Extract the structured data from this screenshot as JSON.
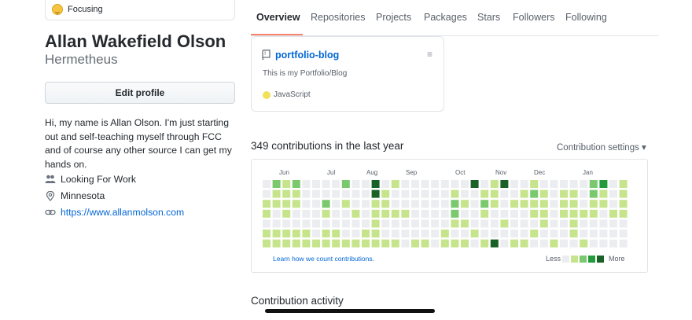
{
  "sidebar": {
    "status": "Focusing",
    "name": "Allan Wakefield Olson",
    "username": "Hermetheus",
    "edit_button": "Edit profile",
    "bio": "Hi, my name is Allan Olson. I'm just starting out and self-teaching myself through FCC and of course any other source I can get my hands on.",
    "company": "Looking For Work",
    "location": "Minnesota",
    "website": "https://www.allanmolson.com"
  },
  "tabs": [
    "Overview",
    "Repositories",
    "Projects",
    "Packages",
    "Stars",
    "Followers",
    "Following"
  ],
  "pinned": {
    "name": "portfolio-blog",
    "description": "This is my Portfolio/Blog",
    "language": "JavaScript",
    "language_color": "#f1e05a"
  },
  "contributions": {
    "title": "349 contributions in the last year",
    "settings": "Contribution settings ▾",
    "months": [
      "Jun",
      "Jul",
      "Aug",
      "Sep",
      "Oct",
      "Nov",
      "Dec",
      "Jan"
    ],
    "learn_link": "Learn how we count contributions.",
    "legend_less": "Less",
    "legend_more": "More",
    "colors": [
      "#ebedf0",
      "#c6e48b",
      "#7bc96f",
      "#239a3b",
      "#196127"
    ],
    "weeks": [
      [
        0,
        0,
        1,
        1,
        0,
        1,
        1
      ],
      [
        2,
        1,
        1,
        0,
        0,
        1,
        1
      ],
      [
        1,
        1,
        1,
        1,
        0,
        1,
        1
      ],
      [
        2,
        1,
        1,
        0,
        0,
        1,
        1
      ],
      [
        0,
        0,
        0,
        0,
        0,
        1,
        1
      ],
      [
        0,
        0,
        0,
        0,
        0,
        0,
        1
      ],
      [
        0,
        0,
        2,
        1,
        0,
        1,
        1
      ],
      [
        0,
        0,
        0,
        0,
        0,
        1,
        1
      ],
      [
        2,
        0,
        1,
        0,
        0,
        0,
        1
      ],
      [
        0,
        0,
        0,
        1,
        0,
        0,
        1
      ],
      [
        0,
        0,
        0,
        0,
        0,
        1,
        1
      ],
      [
        4,
        4,
        1,
        1,
        1,
        1,
        1
      ],
      [
        0,
        1,
        1,
        1,
        0,
        0,
        1
      ],
      [
        1,
        0,
        0,
        1,
        0,
        0,
        1
      ],
      [
        0,
        0,
        0,
        1,
        0,
        0,
        0
      ],
      [
        0,
        0,
        0,
        0,
        0,
        0,
        1
      ],
      [
        0,
        0,
        0,
        0,
        0,
        0,
        1
      ],
      [
        0,
        0,
        0,
        0,
        0,
        0,
        0
      ],
      [
        0,
        0,
        0,
        0,
        0,
        1,
        1
      ],
      [
        0,
        1,
        2,
        2,
        1,
        0,
        1
      ],
      [
        0,
        0,
        1,
        0,
        1,
        0,
        1
      ],
      [
        4,
        0,
        0,
        0,
        0,
        1,
        0
      ],
      [
        0,
        1,
        2,
        1,
        0,
        0,
        1
      ],
      [
        1,
        1,
        1,
        0,
        0,
        0,
        4
      ],
      [
        4,
        0,
        0,
        0,
        1,
        0,
        0
      ],
      [
        0,
        0,
        1,
        0,
        0,
        0,
        1
      ],
      [
        0,
        1,
        1,
        0,
        0,
        0,
        1
      ],
      [
        1,
        2,
        1,
        1,
        0,
        1,
        0
      ],
      [
        0,
        1,
        1,
        1,
        1,
        0,
        0
      ],
      [
        0,
        0,
        0,
        0,
        0,
        0,
        1
      ],
      [
        0,
        1,
        1,
        1,
        0,
        0,
        0
      ],
      [
        0,
        1,
        1,
        1,
        1,
        1,
        0
      ],
      [
        0,
        0,
        0,
        1,
        0,
        0,
        1
      ],
      [
        2,
        2,
        1,
        1,
        0,
        0,
        0
      ],
      [
        3,
        1,
        1,
        0,
        0,
        0,
        0
      ],
      [
        0,
        0,
        0,
        1,
        0,
        0,
        0
      ],
      [
        1,
        1,
        1,
        1,
        0,
        0,
        0
      ]
    ]
  },
  "activity_title": "Contribution activity"
}
